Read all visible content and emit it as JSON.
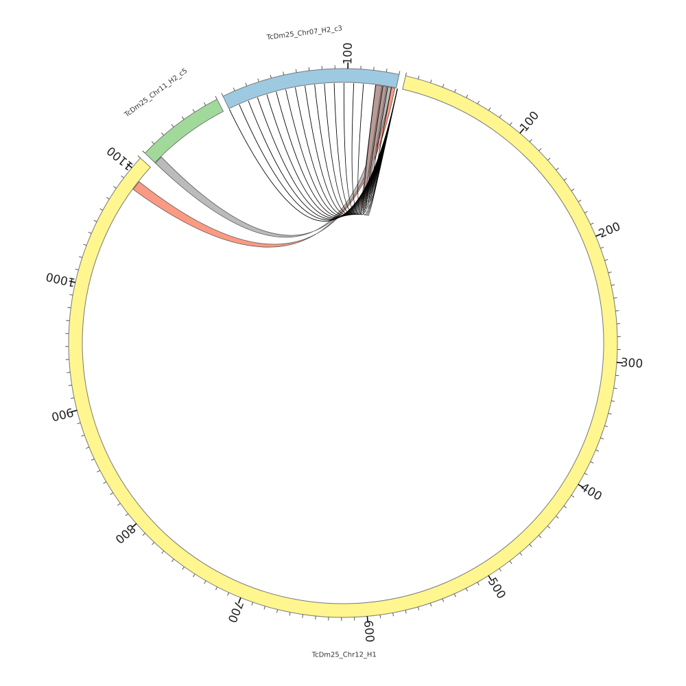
{
  "chart_data": {
    "type": "circos",
    "segments": [
      {
        "name": "TcDm25_Chr12_H1",
        "length": 1110,
        "color": "#FFF68F",
        "tick_labels": [
          {
            "pos": 100,
            "label": "100"
          },
          {
            "pos": 200,
            "label": "200"
          },
          {
            "pos": 300,
            "label": "300"
          },
          {
            "pos": 400,
            "label": "400"
          },
          {
            "pos": 500,
            "label": "500"
          },
          {
            "pos": 600,
            "label": "600"
          },
          {
            "pos": 700,
            "label": "700"
          },
          {
            "pos": 800,
            "label": "800"
          },
          {
            "pos": 900,
            "label": "900"
          },
          {
            "pos": 1000,
            "label": "1000"
          },
          {
            "pos": 1100,
            "label": "1100"
          }
        ]
      },
      {
        "name": "TcDm25_Chr11_H2_c5",
        "length": 70,
        "color": "#A1D99B",
        "tick_labels": []
      },
      {
        "name": "TcDm25_Chr07_H2_c3",
        "length": 140,
        "color": "#9ECAE1",
        "tick_labels": [
          {
            "pos": 100,
            "label": "100"
          }
        ]
      }
    ],
    "links": [
      {
        "type": "ribbon",
        "color": "#FA9A82",
        "from": {
          "segment": "TcDm25_Chr12_H1",
          "start": 1087,
          "end": 1095
        },
        "to": {
          "segment": "TcDm25_Chr07_H2_c3",
          "start": 139,
          "end": 136
        }
      },
      {
        "type": "ribbon",
        "color": "#BBBBBB",
        "from": {
          "segment": "TcDm25_Chr11_H2_c5",
          "start": 0,
          "end": 7
        },
        "to": {
          "segment": "TcDm25_Chr07_H2_c3",
          "start": 136,
          "end": 132
        }
      },
      {
        "type": "ribbon",
        "color": "#B89A96",
        "from": {
          "segment": "TcDm25_Chr07_H2_c3",
          "start": 123,
          "end": 128
        },
        "to": {
          "segment": "TcDm25_Chr07_H2_c3",
          "start": 132,
          "end": 128
        }
      },
      {
        "type": "line",
        "color": "#000000",
        "from": {
          "segment": "TcDm25_Chr07_H2_c3",
          "pos": 0
        },
        "to": {
          "segment": "TcDm25_Chr07_H2_c3",
          "pos": 141
        }
      },
      {
        "type": "line",
        "color": "#000000",
        "from": {
          "segment": "TcDm25_Chr07_H2_c3",
          "pos": 9
        },
        "to": {
          "segment": "TcDm25_Chr07_H2_c3",
          "pos": 141
        }
      },
      {
        "type": "line",
        "color": "#000000",
        "from": {
          "segment": "TcDm25_Chr07_H2_c3",
          "pos": 17
        },
        "to": {
          "segment": "TcDm25_Chr07_H2_c3",
          "pos": 141
        }
      },
      {
        "type": "line",
        "color": "#000000",
        "from": {
          "segment": "TcDm25_Chr07_H2_c3",
          "pos": 25
        },
        "to": {
          "segment": "TcDm25_Chr07_H2_c3",
          "pos": 141
        }
      },
      {
        "type": "line",
        "color": "#000000",
        "from": {
          "segment": "TcDm25_Chr07_H2_c3",
          "pos": 33
        },
        "to": {
          "segment": "TcDm25_Chr07_H2_c3",
          "pos": 141
        }
      },
      {
        "type": "line",
        "color": "#000000",
        "from": {
          "segment": "TcDm25_Chr07_H2_c3",
          "pos": 41
        },
        "to": {
          "segment": "TcDm25_Chr07_H2_c3",
          "pos": 141
        }
      },
      {
        "type": "line",
        "color": "#000000",
        "from": {
          "segment": "TcDm25_Chr07_H2_c3",
          "pos": 49
        },
        "to": {
          "segment": "TcDm25_Chr07_H2_c3",
          "pos": 141
        }
      },
      {
        "type": "line",
        "color": "#000000",
        "from": {
          "segment": "TcDm25_Chr07_H2_c3",
          "pos": 57
        },
        "to": {
          "segment": "TcDm25_Chr07_H2_c3",
          "pos": 141
        }
      },
      {
        "type": "line",
        "color": "#000000",
        "from": {
          "segment": "TcDm25_Chr07_H2_c3",
          "pos": 65
        },
        "to": {
          "segment": "TcDm25_Chr07_H2_c3",
          "pos": 141
        }
      },
      {
        "type": "line",
        "color": "#000000",
        "from": {
          "segment": "TcDm25_Chr07_H2_c3",
          "pos": 73
        },
        "to": {
          "segment": "TcDm25_Chr07_H2_c3",
          "pos": 141
        }
      },
      {
        "type": "line",
        "color": "#000000",
        "from": {
          "segment": "TcDm25_Chr07_H2_c3",
          "pos": 81
        },
        "to": {
          "segment": "TcDm25_Chr07_H2_c3",
          "pos": 141
        }
      },
      {
        "type": "line",
        "color": "#000000",
        "from": {
          "segment": "TcDm25_Chr07_H2_c3",
          "pos": 89
        },
        "to": {
          "segment": "TcDm25_Chr07_H2_c3",
          "pos": 141
        }
      },
      {
        "type": "line",
        "color": "#000000",
        "from": {
          "segment": "TcDm25_Chr07_H2_c3",
          "pos": 97
        },
        "to": {
          "segment": "TcDm25_Chr07_H2_c3",
          "pos": 141
        }
      },
      {
        "type": "line",
        "color": "#000000",
        "from": {
          "segment": "TcDm25_Chr07_H2_c3",
          "pos": 105
        },
        "to": {
          "segment": "TcDm25_Chr07_H2_c3",
          "pos": 141
        }
      },
      {
        "type": "line",
        "color": "#000000",
        "from": {
          "segment": "TcDm25_Chr07_H2_c3",
          "pos": 113
        },
        "to": {
          "segment": "TcDm25_Chr07_H2_c3",
          "pos": 141
        }
      },
      {
        "type": "line",
        "color": "#000000",
        "from": {
          "segment": "TcDm25_Chr07_H2_c3",
          "pos": 123
        },
        "to": {
          "segment": "TcDm25_Chr07_H2_c3",
          "pos": 141
        }
      },
      {
        "type": "line",
        "color": "#000000",
        "from": {
          "segment": "TcDm25_Chr07_H2_c3",
          "pos": 129
        },
        "to": {
          "segment": "TcDm25_Chr07_H2_c3",
          "pos": 141
        }
      },
      {
        "type": "line",
        "color": "#000000",
        "from": {
          "segment": "TcDm25_Chr07_H2_c3",
          "pos": 133
        },
        "to": {
          "segment": "TcDm25_Chr07_H2_c3",
          "pos": 141
        }
      },
      {
        "type": "line",
        "color": "#000000",
        "from": {
          "segment": "TcDm25_Chr07_H2_c3",
          "pos": 136
        },
        "to": {
          "segment": "TcDm25_Chr07_H2_c3",
          "pos": 141
        }
      }
    ]
  }
}
